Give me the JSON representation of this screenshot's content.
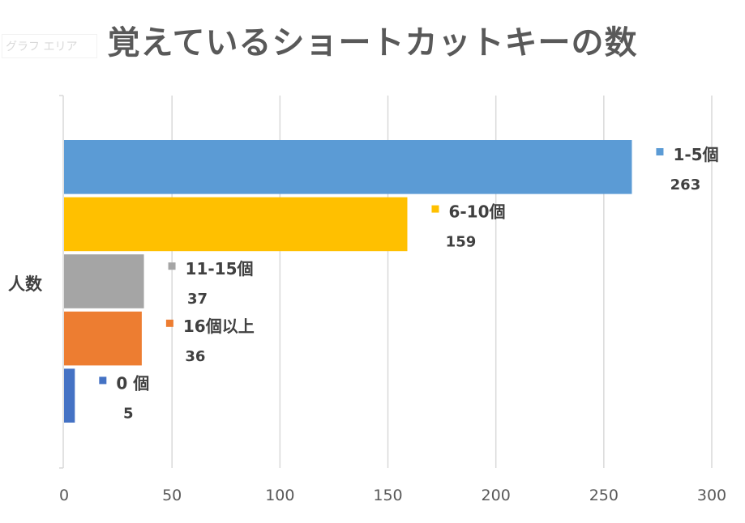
{
  "chart_area_tag": "グラフ エリア",
  "chart_data": {
    "type": "bar",
    "orientation": "horizontal",
    "title": "覚えているショートカットキーの数",
    "categories": [
      "人数"
    ],
    "series": [
      {
        "name": "1-5個",
        "values": [
          263
        ],
        "color": "#5B9BD5"
      },
      {
        "name": "6-10個",
        "values": [
          159
        ],
        "color": "#FFC000"
      },
      {
        "name": "11-15個",
        "values": [
          37
        ],
        "color": "#A5A5A5"
      },
      {
        "name": "16個以上",
        "values": [
          36
        ],
        "color": "#ED7D31"
      },
      {
        "name": "0 個",
        "values": [
          5
        ],
        "color": "#4472C4"
      }
    ],
    "xlim": [
      0,
      300
    ],
    "xticks": [
      0,
      50,
      100,
      150,
      200,
      250,
      300
    ],
    "grid": true,
    "legend": "data-labels"
  }
}
